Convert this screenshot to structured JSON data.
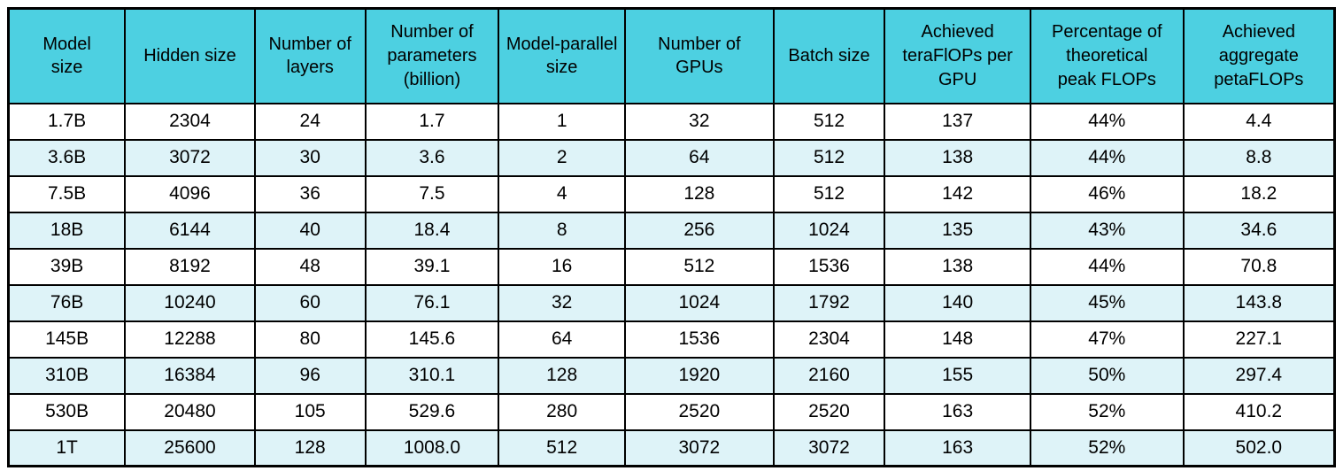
{
  "colors": {
    "header_bg": "#4dd0e1",
    "row_bg": "#ffffff",
    "row_alt_bg": "#def3f8",
    "border": "#000000",
    "text": "#000000"
  },
  "chart_data": {
    "type": "table",
    "columns": [
      "Model size",
      "Hidden size",
      "Number of layers",
      "Number of parameters (billion)",
      "Model-parallel size",
      "Number of GPUs",
      "Batch size",
      "Achieved teraFlOPs per GPU",
      "Percentage of theoretical peak FLOPs",
      "Achieved aggregate petaFLOPs"
    ],
    "column_display_lines": [
      [
        "Model",
        "size"
      ],
      [
        "Hidden size"
      ],
      [
        "Number of",
        "layers"
      ],
      [
        "Number of",
        "parameters",
        "(billion)"
      ],
      [
        "Model-parallel",
        "size"
      ],
      [
        "Number of",
        "GPUs"
      ],
      [
        "Batch size"
      ],
      [
        "Achieved",
        "teraFlOPs per",
        "GPU"
      ],
      [
        "Percentage of",
        "theoretical",
        "peak FLOPs"
      ],
      [
        "Achieved",
        "aggregate",
        "petaFLOPs"
      ]
    ],
    "rows": [
      [
        "1.7B",
        "2304",
        "24",
        "1.7",
        "1",
        "32",
        "512",
        "137",
        "44%",
        "4.4"
      ],
      [
        "3.6B",
        "3072",
        "30",
        "3.6",
        "2",
        "64",
        "512",
        "138",
        "44%",
        "8.8"
      ],
      [
        "7.5B",
        "4096",
        "36",
        "7.5",
        "4",
        "128",
        "512",
        "142",
        "46%",
        "18.2"
      ],
      [
        "18B",
        "6144",
        "40",
        "18.4",
        "8",
        "256",
        "1024",
        "135",
        "43%",
        "34.6"
      ],
      [
        "39B",
        "8192",
        "48",
        "39.1",
        "16",
        "512",
        "1536",
        "138",
        "44%",
        "70.8"
      ],
      [
        "76B",
        "10240",
        "60",
        "76.1",
        "32",
        "1024",
        "1792",
        "140",
        "45%",
        "143.8"
      ],
      [
        "145B",
        "12288",
        "80",
        "145.6",
        "64",
        "1536",
        "2304",
        "148",
        "47%",
        "227.1"
      ],
      [
        "310B",
        "16384",
        "96",
        "310.1",
        "128",
        "1920",
        "2160",
        "155",
        "50%",
        "297.4"
      ],
      [
        "530B",
        "20480",
        "105",
        "529.6",
        "280",
        "2520",
        "2520",
        "163",
        "52%",
        "410.2"
      ],
      [
        "1T",
        "25600",
        "128",
        "1008.0",
        "512",
        "3072",
        "3072",
        "163",
        "52%",
        "502.0"
      ]
    ]
  }
}
